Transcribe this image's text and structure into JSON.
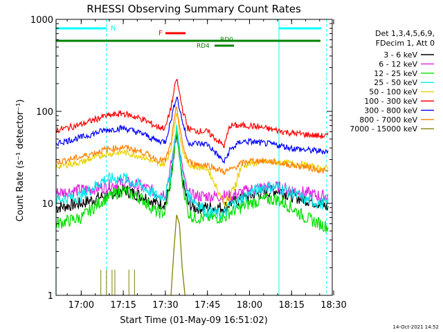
{
  "chart_data": {
    "type": "line",
    "title": "RHESSI Observing Summary Count Rates",
    "xlabel": "Start Time (01-May-09 16:51:02)",
    "ylabel": "Count Rate (s⁻¹ detector⁻¹)",
    "yscale": "log",
    "ylim": [
      1,
      1000
    ],
    "xlim": [
      "16:51:02",
      "18:29:30"
    ],
    "x_ticks": [
      "17:00",
      "17:15",
      "17:30",
      "17:45",
      "18:00",
      "18:15",
      "18:30"
    ],
    "y_ticks": [
      "1",
      "10",
      "100",
      "1000"
    ],
    "timestamp": "14-Oct-2021 14:52",
    "legend": {
      "placement": "right",
      "header": [
        "Det 1,3,4,5,6,9,",
        "FDecim 1, Att 0"
      ]
    },
    "series": [
      {
        "name": "3 - 6 keV",
        "color": "#000000",
        "x": [
          "16:51",
          "17:00",
          "17:08",
          "17:15",
          "17:22",
          "17:27",
          "17:30",
          "17:32",
          "17:34",
          "17:36",
          "17:38",
          "17:40",
          "17:45",
          "17:51",
          "17:53",
          "17:57",
          "18:00",
          "18:05",
          "18:10",
          "18:15",
          "18:20",
          "18:25",
          "18:28"
        ],
        "y": [
          9,
          10,
          12,
          14,
          12,
          10,
          10,
          18,
          55,
          18,
          10,
          9,
          9,
          9,
          10,
          11,
          12,
          13,
          14,
          12,
          11,
          10,
          9
        ]
      },
      {
        "name": "6 - 12 keV",
        "color": "#e020e0",
        "x": [
          "16:51",
          "17:00",
          "17:08",
          "17:15",
          "17:22",
          "17:27",
          "17:30",
          "17:32",
          "17:34",
          "17:36",
          "17:38",
          "17:40",
          "17:45",
          "17:51",
          "17:53",
          "17:57",
          "18:00",
          "18:05",
          "18:10",
          "18:15",
          "18:20",
          "18:25",
          "18:28"
        ],
        "y": [
          13,
          14,
          15,
          17,
          15,
          13,
          13,
          25,
          65,
          25,
          13,
          12,
          12,
          12,
          12,
          13,
          14,
          15,
          15,
          14,
          13,
          12,
          12
        ]
      },
      {
        "name": "12 - 25 keV",
        "color": "#00e000",
        "x": [
          "16:51",
          "17:00",
          "17:08",
          "17:15",
          "17:22",
          "17:27",
          "17:30",
          "17:32",
          "17:34",
          "17:36",
          "17:38",
          "17:40",
          "17:45",
          "17:51",
          "17:53",
          "17:57",
          "18:00",
          "18:05",
          "18:10",
          "18:15",
          "18:20",
          "18:25",
          "18:28"
        ],
        "y": [
          6,
          7,
          11,
          14,
          11,
          8,
          8,
          18,
          60,
          18,
          8,
          7,
          7,
          7,
          8,
          9,
          10,
          11,
          11,
          9,
          7,
          6,
          5.5
        ]
      },
      {
        "name": "25 - 50 keV",
        "color": "#00e8e8",
        "x": [
          "16:51",
          "17:00",
          "17:08",
          "17:15",
          "17:22",
          "17:27",
          "17:30",
          "17:32",
          "17:34",
          "17:36",
          "17:38",
          "17:40",
          "17:45",
          "17:51",
          "17:53",
          "17:57",
          "18:00",
          "18:05",
          "18:10",
          "18:15",
          "18:20",
          "18:25",
          "18:28"
        ],
        "y": [
          11,
          12,
          18,
          19,
          15,
          12,
          12,
          22,
          70,
          22,
          12,
          11,
          8,
          7.5,
          9.5,
          11,
          13,
          15,
          15,
          13,
          11,
          10,
          10
        ]
      },
      {
        "name": "50 - 100 keV",
        "color": "#e8d000",
        "x": [
          "16:51",
          "17:00",
          "17:08",
          "17:15",
          "17:22",
          "17:27",
          "17:30",
          "17:32",
          "17:34",
          "17:36",
          "17:38",
          "17:40",
          "17:45",
          "17:51",
          "17:53",
          "17:57",
          "18:00",
          "18:05",
          "18:10",
          "18:15",
          "18:20",
          "18:25",
          "18:28"
        ],
        "y": [
          25,
          28,
          34,
          36,
          32,
          27,
          27,
          40,
          100,
          40,
          27,
          25,
          24,
          10,
          11,
          25,
          27,
          28,
          28,
          27,
          26,
          24,
          24
        ]
      },
      {
        "name": "100 - 300 keV",
        "color": "#ff0000",
        "x": [
          "16:51",
          "17:00",
          "17:08",
          "17:15",
          "17:22",
          "17:27",
          "17:30",
          "17:32",
          "17:34",
          "17:36",
          "17:38",
          "17:40",
          "17:45",
          "17:51",
          "17:53",
          "17:57",
          "18:00",
          "18:05",
          "18:10",
          "18:15",
          "18:20",
          "18:25",
          "18:28"
        ],
        "y": [
          62,
          72,
          88,
          95,
          82,
          68,
          66,
          110,
          230,
          110,
          66,
          62,
          60,
          42,
          70,
          70,
          70,
          66,
          62,
          58,
          56,
          54,
          54
        ]
      },
      {
        "name": "300 - 800 keV",
        "color": "#0000ff",
        "x": [
          "16:51",
          "17:00",
          "17:08",
          "17:15",
          "17:22",
          "17:27",
          "17:30",
          "17:32",
          "17:34",
          "17:36",
          "17:38",
          "17:40",
          "17:45",
          "17:51",
          "17:53",
          "17:57",
          "18:00",
          "18:05",
          "18:10",
          "18:15",
          "18:20",
          "18:25",
          "18:28"
        ],
        "y": [
          45,
          52,
          62,
          66,
          57,
          48,
          47,
          80,
          150,
          80,
          46,
          45,
          44,
          28,
          38,
          47,
          47,
          45,
          43,
          40,
          38,
          37,
          37
        ]
      },
      {
        "name": "800 - 7000 keV",
        "color": "#ff8000",
        "x": [
          "16:51",
          "17:00",
          "17:08",
          "17:15",
          "17:22",
          "17:27",
          "17:30",
          "17:32",
          "17:34",
          "17:36",
          "17:38",
          "17:40",
          "17:45",
          "17:51",
          "17:53",
          "17:57",
          "18:00",
          "18:05",
          "18:10",
          "18:15",
          "18:20",
          "18:25",
          "18:28"
        ],
        "y": [
          28,
          32,
          38,
          41,
          36,
          30,
          29,
          45,
          115,
          45,
          29,
          27,
          26,
          22,
          23,
          27,
          29,
          29,
          28,
          26,
          25,
          23,
          22
        ]
      },
      {
        "name": "7000 - 15000 keV",
        "color": "#808000",
        "x": [
          "17:32",
          "17:33",
          "17:34",
          "17:35",
          "17:36",
          "17:37"
        ],
        "y": [
          1,
          3,
          7.5,
          6,
          2,
          1
        ]
      }
    ],
    "annotations": [
      {
        "label": "N",
        "color": "#00ffff"
      },
      {
        "label": "F",
        "color": "#ff0000"
      },
      {
        "label": "RD0",
        "color": "#008000"
      },
      {
        "label": "RD4",
        "color": "#008000"
      }
    ]
  }
}
